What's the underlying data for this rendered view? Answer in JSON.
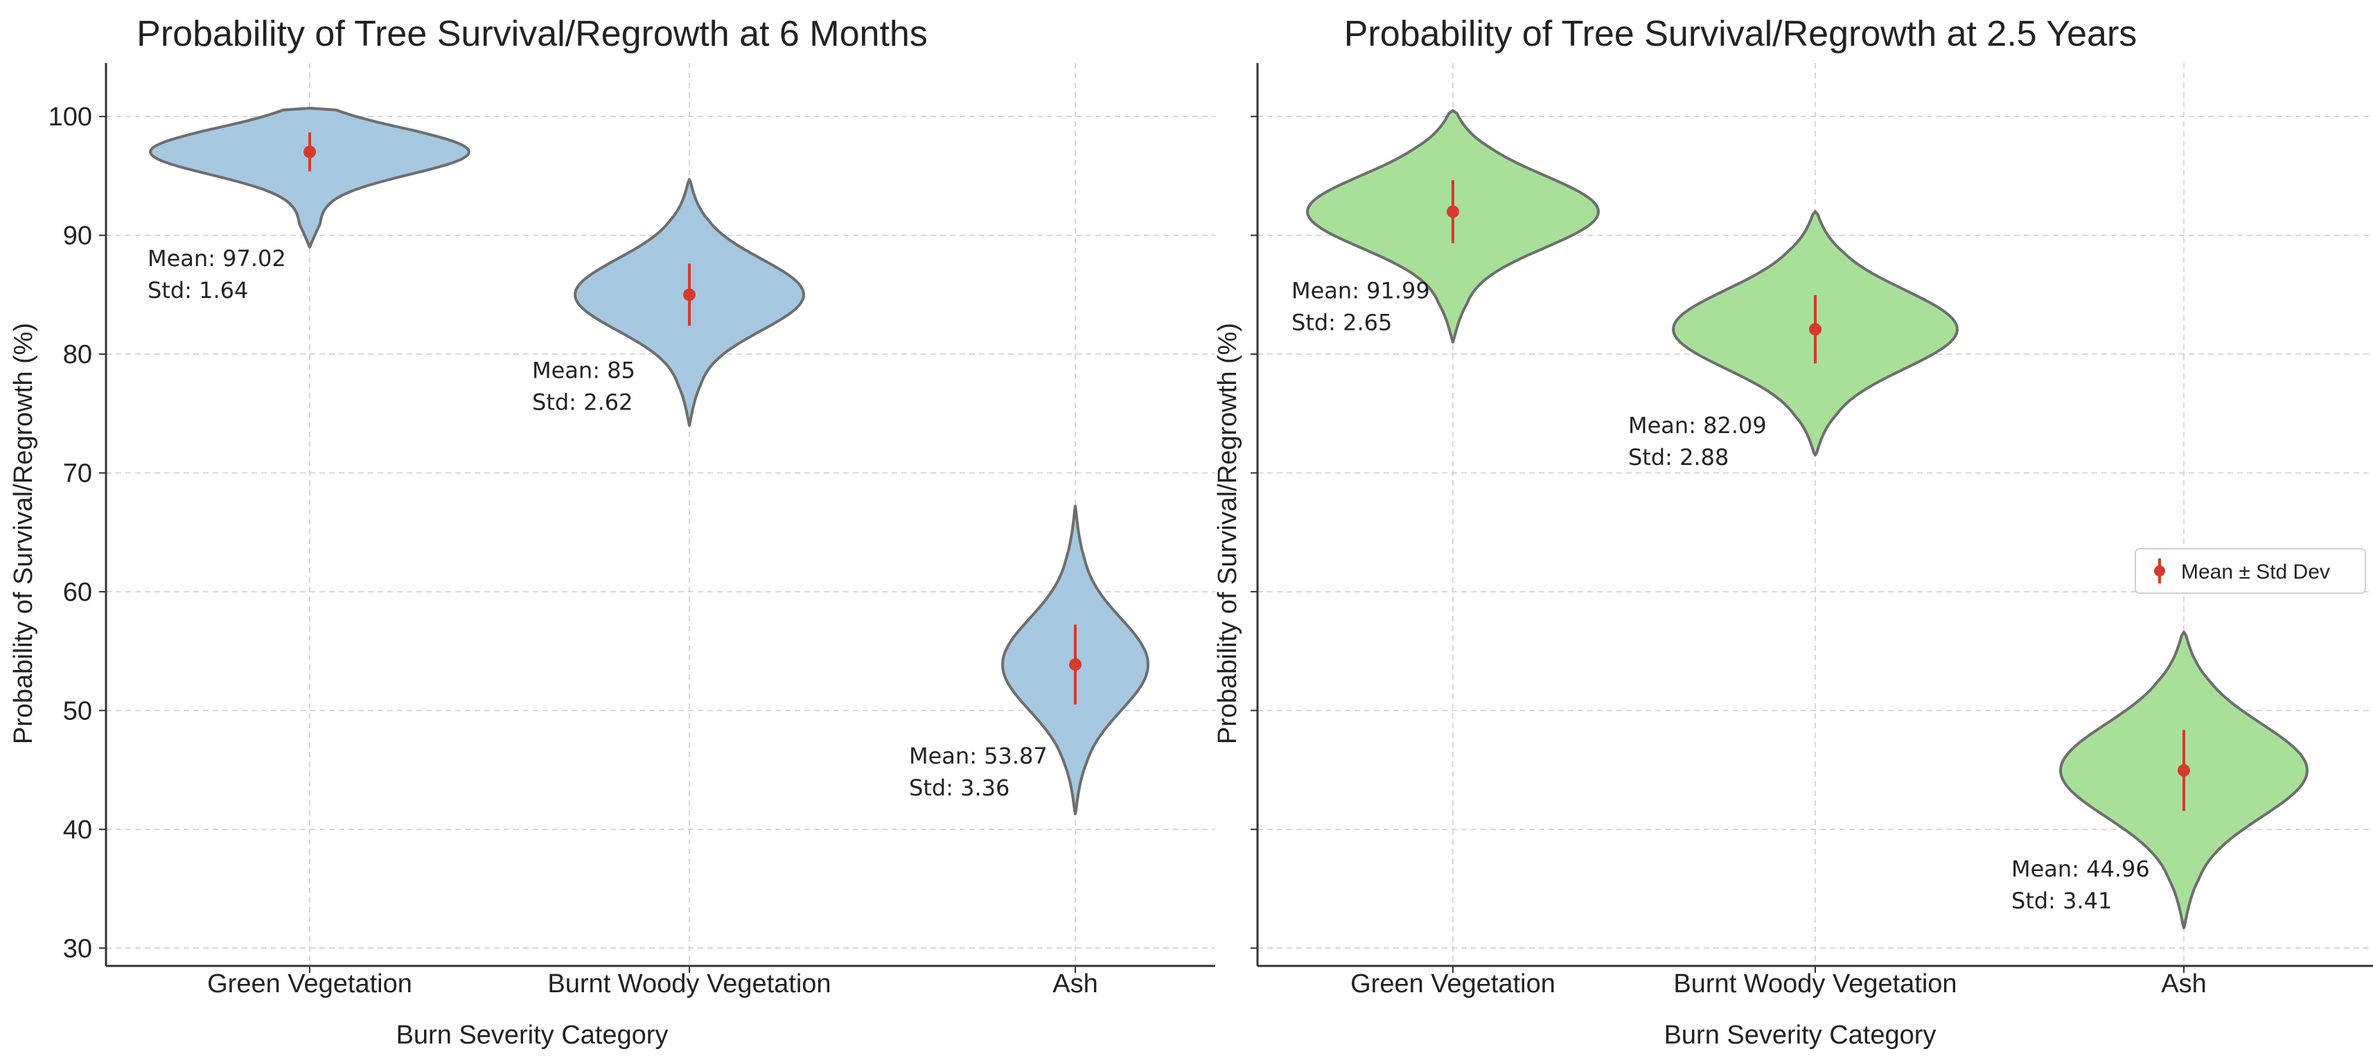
{
  "chart_data": [
    {
      "type": "violin",
      "title": "Probability of Tree Survival/Regrowth at 6 Months",
      "xlabel": "Burn Severity Category",
      "ylabel": "Probability of Survival/Regrowth (%)",
      "categories": [
        "Green Vegetation",
        "Burnt Woody Vegetation",
        "Ash"
      ],
      "ylim": [
        28.5,
        104.5
      ],
      "yticks": [
        30,
        40,
        50,
        60,
        70,
        80,
        90,
        100
      ],
      "grid": true,
      "fill_color": "#a6c8e0",
      "series": [
        {
          "category": "Green Vegetation",
          "mean": 97.02,
          "std": 1.64,
          "min": 89,
          "max": 100.7,
          "mean_label": "Mean: 97.02",
          "std_label": "Std: 1.64"
        },
        {
          "category": "Burnt Woody Vegetation",
          "mean": 85,
          "std": 2.62,
          "min": 74,
          "max": 94.7,
          "mean_label": "Mean: 85",
          "std_label": "Std: 2.62"
        },
        {
          "category": "Ash",
          "mean": 53.87,
          "std": 3.36,
          "min": 41.3,
          "max": 67.2,
          "mean_label": "Mean: 53.87",
          "std_label": "Std: 3.36"
        }
      ]
    },
    {
      "type": "violin",
      "title": "Probability of Tree Survival/Regrowth at 2.5 Years",
      "xlabel": "Burn Severity Category",
      "ylabel": "Probability of Survival/Regrowth (%)",
      "categories": [
        "Green Vegetation",
        "Burnt Woody Vegetation",
        "Ash"
      ],
      "ylim": [
        28.5,
        104.5
      ],
      "yticks": [
        30,
        40,
        50,
        60,
        70,
        80,
        90,
        100
      ],
      "grid": true,
      "fill_color": "#a8e09a",
      "legend": {
        "label": "Mean ± Std Dev",
        "position": "center-right"
      },
      "series": [
        {
          "category": "Green Vegetation",
          "mean": 91.99,
          "std": 2.65,
          "min": 81,
          "max": 100.5,
          "mean_label": "Mean: 91.99",
          "std_label": "Std: 2.65"
        },
        {
          "category": "Burnt Woody Vegetation",
          "mean": 82.09,
          "std": 2.88,
          "min": 71.5,
          "max": 92,
          "mean_label": "Mean: 82.09",
          "std_label": "Std: 2.88"
        },
        {
          "category": "Ash",
          "mean": 44.96,
          "std": 3.41,
          "min": 31.7,
          "max": 56.6,
          "mean_label": "Mean: 44.96",
          "std_label": "Std: 3.41"
        }
      ]
    }
  ],
  "colors": {
    "violin_outline": "#6e6e6e",
    "marker": "#d63a2c",
    "grid": "#cccccc",
    "axis": "#333333"
  }
}
